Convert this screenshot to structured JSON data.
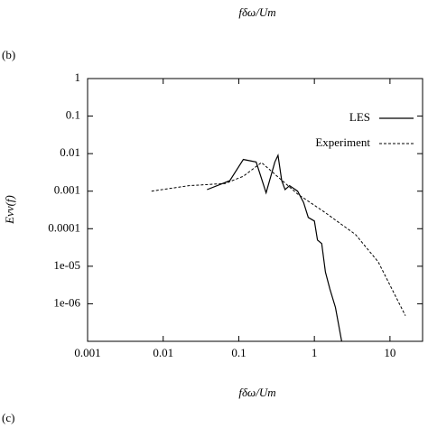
{
  "chart_data": {
    "type": "line",
    "top_label": "fδω/Um",
    "panel_label": "(b)",
    "next_panel_label": "(c)",
    "xlabel": "fδω/Um",
    "ylabel": "Evv(f)",
    "xlog": true,
    "ylog": true,
    "xlim": [
      0.001,
      27
    ],
    "ylim": [
      1e-07,
      1
    ],
    "xticks": [
      0.001,
      0.01,
      0.1,
      1,
      10
    ],
    "yticks": [
      1,
      0.1,
      0.01,
      0.001,
      0.0001,
      {
        "value": 1e-05,
        "label": "1e-05"
      },
      {
        "value": 1e-06,
        "label": "1e-06"
      }
    ],
    "legend": "upper right",
    "series": [
      {
        "name": "LES",
        "color": "#000000",
        "dash": false,
        "x": [
          0.038,
          0.076,
          0.115,
          0.17,
          0.23,
          0.3,
          0.33,
          0.37,
          0.41,
          0.47,
          0.6,
          0.72,
          0.83,
          1.0,
          1.1,
          1.25,
          1.4,
          1.6,
          1.9,
          2.3
        ],
        "values": [
          0.0011,
          0.0019,
          0.007,
          0.006,
          0.0009,
          0.006,
          0.009,
          0.0019,
          0.0011,
          0.0014,
          0.001,
          0.0005,
          0.0002,
          0.00016,
          5e-05,
          4e-05,
          7e-06,
          2.5e-06,
          8e-07,
          1e-07
        ]
      },
      {
        "name": "Experiment",
        "color": "#000000",
        "dash": true,
        "x": [
          0.007,
          0.022,
          0.066,
          0.115,
          0.2,
          0.6,
          1.35,
          3.5,
          7,
          16
        ],
        "values": [
          0.001,
          0.0014,
          0.0016,
          0.0025,
          0.0058,
          0.00084,
          0.00028,
          7e-05,
          1.3e-05,
          4.8e-07
        ]
      }
    ]
  }
}
